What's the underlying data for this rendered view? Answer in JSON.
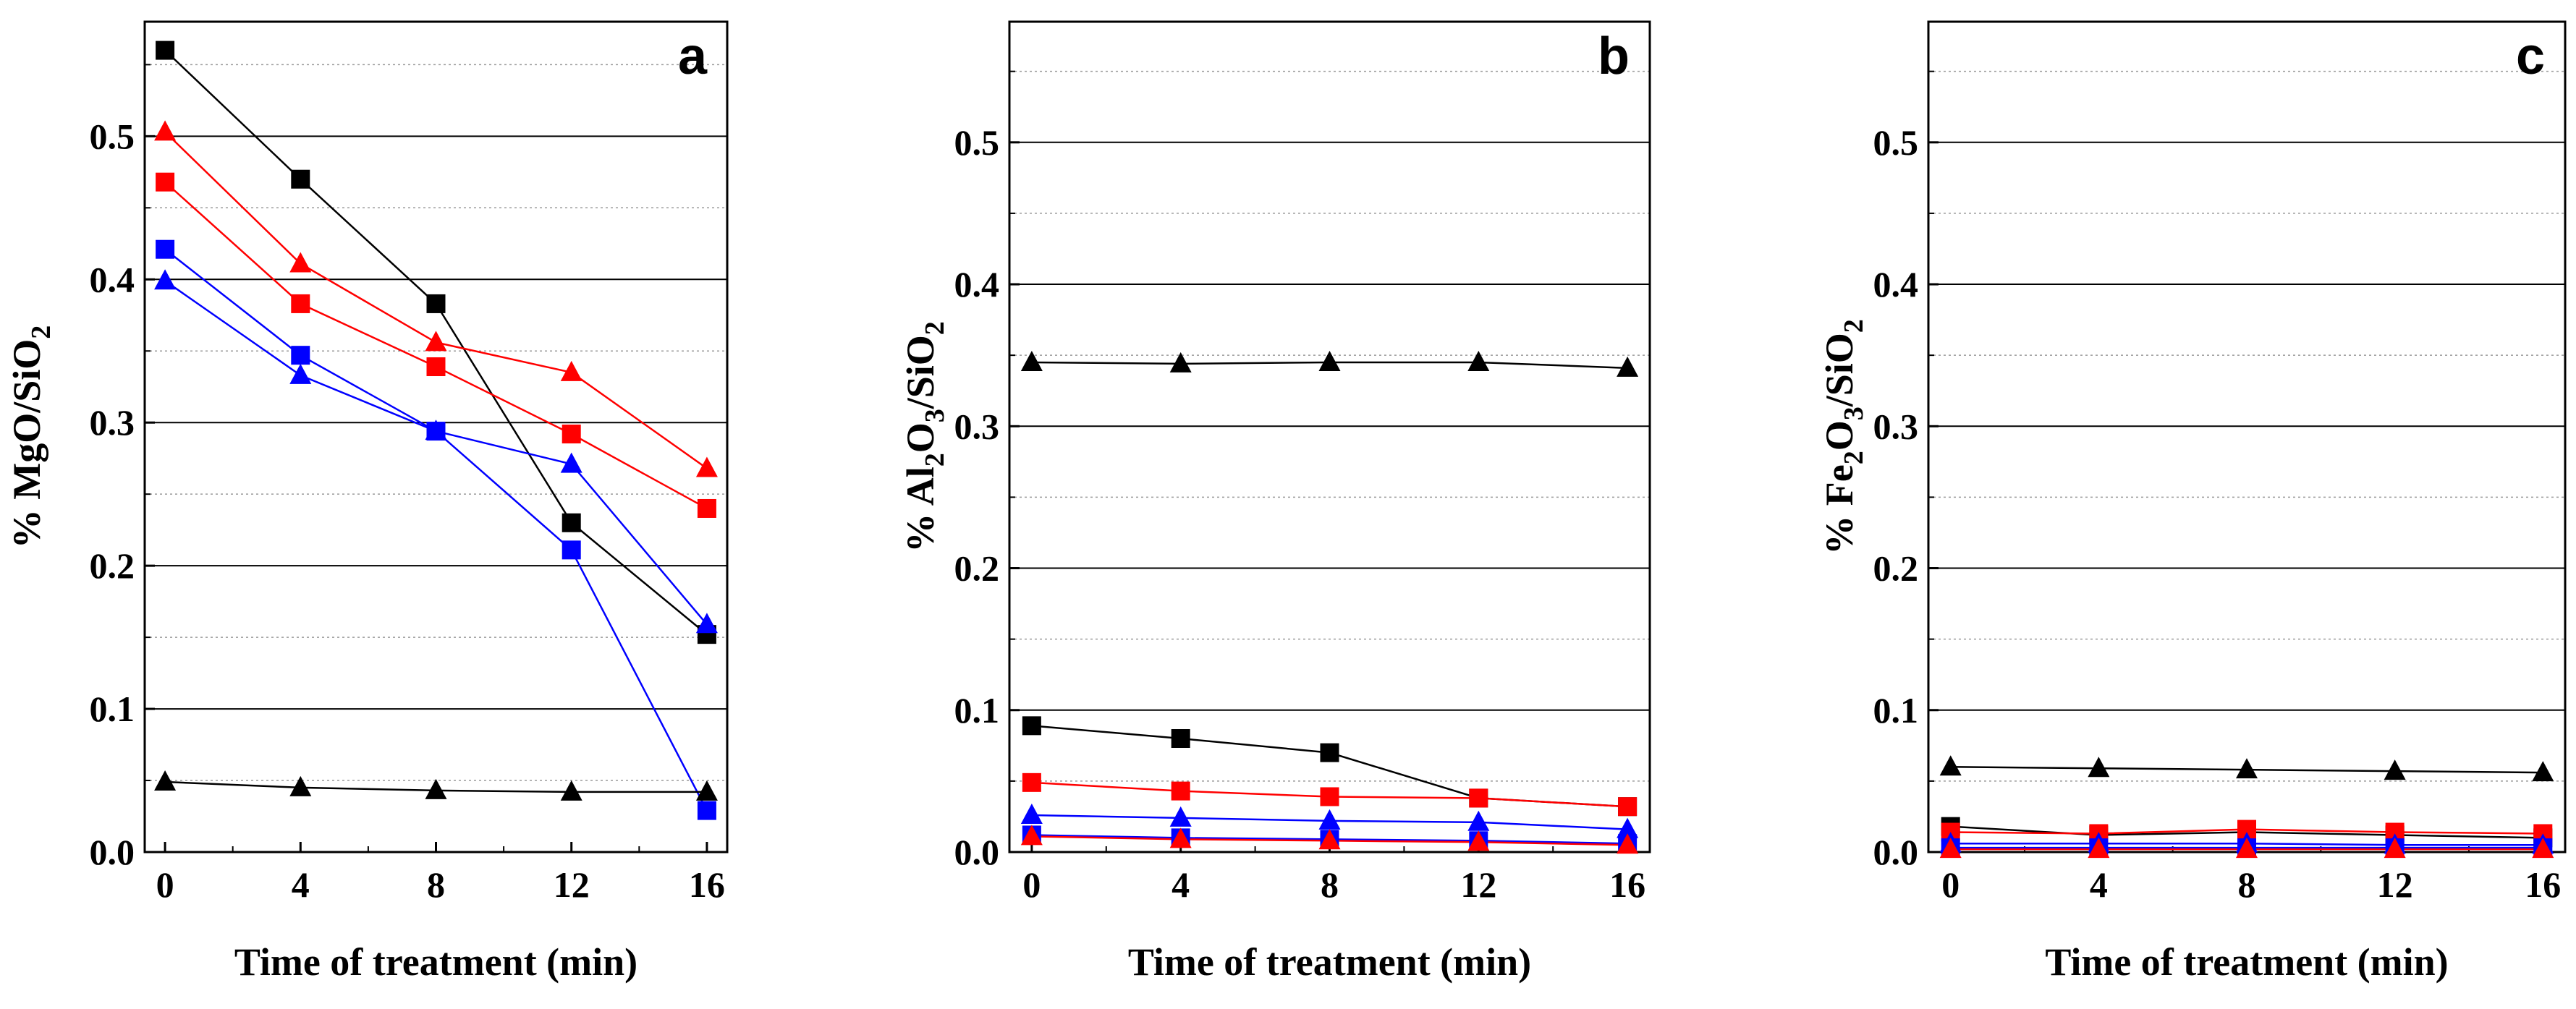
{
  "chart_data": [
    {
      "type": "line",
      "panel_label": "a",
      "xlabel": "Time of treatment (min)",
      "ylabel_parts": [
        "% MgO/SiO",
        "2"
      ],
      "xlim": [
        -0.6,
        16.6
      ],
      "ylim": [
        0,
        0.58
      ],
      "x_ticks": [
        0,
        4,
        8,
        12,
        16
      ],
      "y_ticks": [
        0.0,
        0.1,
        0.2,
        0.3,
        0.4,
        0.5
      ],
      "x": [
        0,
        4,
        8,
        12,
        16
      ],
      "series": [
        {
          "name": "black-square",
          "color": "#000000",
          "marker": "square",
          "values": [
            0.56,
            0.47,
            0.383,
            0.23,
            0.152
          ]
        },
        {
          "name": "red-triangle",
          "color": "#ff0000",
          "marker": "triangle",
          "values": [
            0.503,
            0.411,
            0.356,
            0.335,
            0.268
          ]
        },
        {
          "name": "red-square",
          "color": "#ff0000",
          "marker": "square",
          "values": [
            0.468,
            0.383,
            0.339,
            0.292,
            0.24
          ]
        },
        {
          "name": "blue-square",
          "color": "#0000ff",
          "marker": "square",
          "values": [
            0.421,
            0.347,
            0.294,
            0.211,
            0.029
          ]
        },
        {
          "name": "blue-triangle",
          "color": "#0000ff",
          "marker": "triangle",
          "values": [
            0.399,
            0.333,
            0.294,
            0.271,
            0.159
          ]
        },
        {
          "name": "black-triangle",
          "color": "#000000",
          "marker": "triangle",
          "values": [
            0.049,
            0.045,
            0.043,
            0.042,
            0.042
          ]
        }
      ]
    },
    {
      "type": "line",
      "panel_label": "b",
      "xlabel": "Time of treatment (min)",
      "ylabel_parts": [
        "% Al",
        "2",
        "O",
        "3",
        "/SiO",
        "2"
      ],
      "xlim": [
        -0.6,
        16.6
      ],
      "ylim": [
        0,
        0.585
      ],
      "x_ticks": [
        0,
        4,
        8,
        12,
        16
      ],
      "y_ticks": [
        0.0,
        0.1,
        0.2,
        0.3,
        0.4,
        0.5
      ],
      "x": [
        0,
        4,
        8,
        12,
        16
      ],
      "series": [
        {
          "name": "black-triangle",
          "color": "#000000",
          "marker": "triangle",
          "values": [
            0.345,
            0.344,
            0.345,
            0.345,
            0.341
          ]
        },
        {
          "name": "black-square",
          "color": "#000000",
          "marker": "square",
          "values": [
            0.089,
            0.08,
            0.07,
            0.038,
            0.032
          ]
        },
        {
          "name": "red-square",
          "color": "#ff0000",
          "marker": "square",
          "values": [
            0.049,
            0.043,
            0.039,
            0.038,
            0.032
          ]
        },
        {
          "name": "blue-triangle",
          "color": "#0000ff",
          "marker": "triangle",
          "values": [
            0.026,
            0.024,
            0.022,
            0.021,
            0.016
          ]
        },
        {
          "name": "blue-square",
          "color": "#0000ff",
          "marker": "square",
          "values": [
            0.012,
            0.01,
            0.009,
            0.008,
            0.006
          ]
        },
        {
          "name": "red-triangle",
          "color": "#ff0000",
          "marker": "triangle",
          "values": [
            0.011,
            0.009,
            0.008,
            0.007,
            0.005
          ]
        }
      ]
    },
    {
      "type": "line",
      "panel_label": "c",
      "xlabel": "Time of treatment (min)",
      "ylabel_parts": [
        "% Fe",
        "2",
        "O",
        "3",
        "/SiO",
        "2"
      ],
      "xlim": [
        -0.6,
        16.6
      ],
      "ylim": [
        0,
        0.585
      ],
      "x_ticks": [
        0,
        4,
        8,
        12,
        16
      ],
      "y_ticks": [
        0.0,
        0.1,
        0.2,
        0.3,
        0.4,
        0.5
      ],
      "x": [
        0,
        4,
        8,
        12,
        16
      ],
      "series": [
        {
          "name": "black-triangle",
          "color": "#000000",
          "marker": "triangle",
          "values": [
            0.06,
            0.059,
            0.058,
            0.057,
            0.056
          ]
        },
        {
          "name": "black-square",
          "color": "#000000",
          "marker": "square",
          "values": [
            0.018,
            0.012,
            0.014,
            0.012,
            0.01
          ]
        },
        {
          "name": "red-square",
          "color": "#ff0000",
          "marker": "square",
          "values": [
            0.014,
            0.013,
            0.016,
            0.014,
            0.013
          ]
        },
        {
          "name": "blue-triangle",
          "color": "#0000ff",
          "marker": "triangle",
          "values": [
            0.006,
            0.006,
            0.006,
            0.005,
            0.005
          ]
        },
        {
          "name": "blue-square",
          "color": "#0000ff",
          "marker": "square",
          "values": [
            0.003,
            0.003,
            0.003,
            0.003,
            0.003
          ]
        },
        {
          "name": "red-triangle",
          "color": "#ff0000",
          "marker": "triangle",
          "values": [
            0.002,
            0.002,
            0.002,
            0.002,
            0.002
          ]
        }
      ]
    }
  ]
}
